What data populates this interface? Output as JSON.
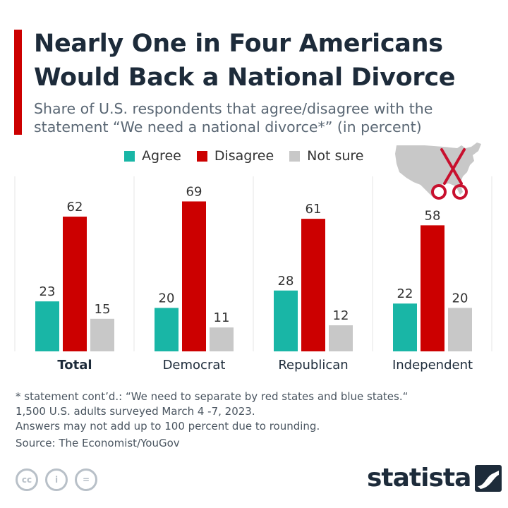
{
  "header": {
    "title": "Nearly One in Four Americans Would Back a National Divorce",
    "subtitle": "Share of U.S. respondents that agree/disagree with the statement “We need a national divorce*” (in percent)",
    "accent_color": "#cc0000"
  },
  "legend": [
    {
      "label": "Agree",
      "color": "#19b6a6"
    },
    {
      "label": "Disagree",
      "color": "#cc0000"
    },
    {
      "label": "Not sure",
      "color": "#c8c8c8"
    }
  ],
  "illustration": {
    "icon": "us-map-scissors-icon",
    "map_color": "#c8c8c8",
    "scissors_color": "#c8102e"
  },
  "chart_data": {
    "type": "bar",
    "categories": [
      "Total",
      "Democrat",
      "Republican",
      "Independent"
    ],
    "series": [
      {
        "name": "Agree",
        "values": [
          23,
          20,
          28,
          22
        ],
        "color": "#19b6a6"
      },
      {
        "name": "Disagree",
        "values": [
          62,
          69,
          61,
          58
        ],
        "color": "#cc0000"
      },
      {
        "name": "Not sure",
        "values": [
          15,
          11,
          12,
          20
        ],
        "color": "#c8c8c8"
      }
    ],
    "title": "Nearly One in Four Americans Would Back a National Divorce",
    "xlabel": "",
    "ylabel": "",
    "ylim": [
      0,
      80
    ],
    "grid": false,
    "legend_position": "top",
    "bold_category": "Total",
    "gridline_color": "#e6e6e6"
  },
  "notes": {
    "lines": [
      "* statement cont’d.: “We need to separate by red states and blue states.“",
      "1,500 U.S. adults surveyed March 4 -7, 2023.",
      "Answers may not add up to 100 percent due to rounding."
    ],
    "source": "Source: The Economist/YouGov"
  },
  "footer": {
    "license_icons": [
      {
        "name": "cc-icon",
        "glyph": "cc"
      },
      {
        "name": "attribution-icon",
        "glyph": "i"
      },
      {
        "name": "no-derivatives-icon",
        "glyph": "="
      }
    ],
    "brand": "statista"
  }
}
